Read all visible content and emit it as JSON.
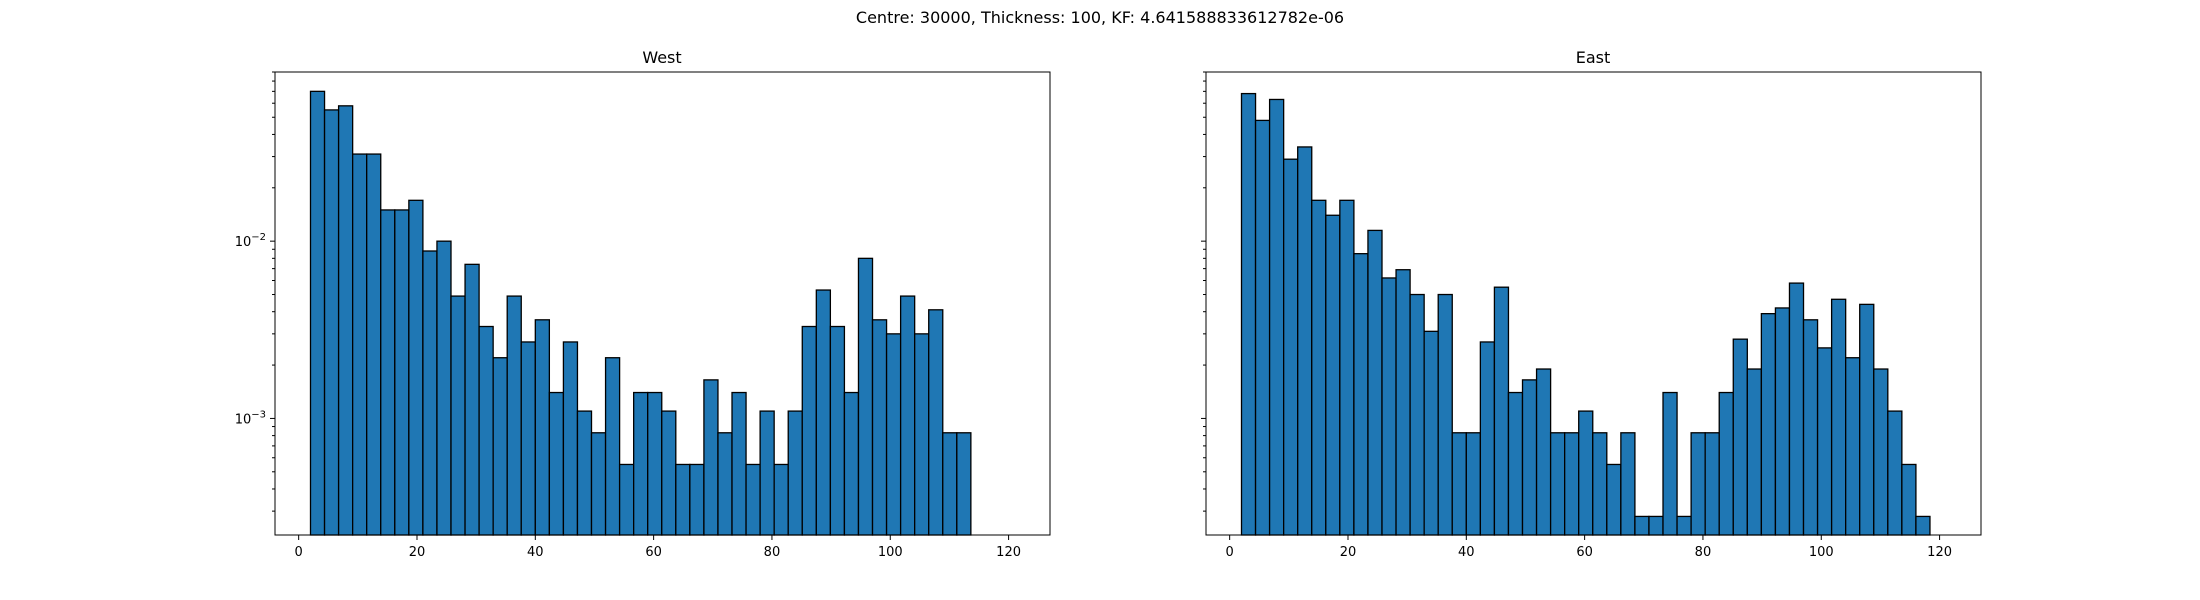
{
  "figure_title": "Centre: 30000, Thickness: 100, KF: 4.641588833612782e-06",
  "colors": {
    "bar_fill": "#1f77b4",
    "bar_edge": "#000000"
  },
  "chart_data": [
    {
      "type": "bar",
      "title": "West",
      "xlabel": "",
      "ylabel": "",
      "xlim": [
        -4,
        127
      ],
      "ylim": [
        0.00022,
        0.09
      ],
      "yscale": "log",
      "grid": false,
      "x_ticks": [
        0,
        20,
        40,
        60,
        80,
        100,
        120
      ],
      "x_tick_labels": [
        "0",
        "20",
        "40",
        "60",
        "80",
        "100",
        "120"
      ],
      "y_ticks": [
        0.01,
        0.001
      ],
      "y_tick_labels": [
        "10^-2",
        "10^-3"
      ],
      "bin_start": 2,
      "bin_width": 2.375,
      "values": [
        0.07,
        0.055,
        0.058,
        0.031,
        0.031,
        0.015,
        0.015,
        0.017,
        0.0088,
        0.01,
        0.0049,
        0.0074,
        0.0033,
        0.0022,
        0.0049,
        0.0027,
        0.0036,
        0.0014,
        0.0027,
        0.0011,
        0.00083,
        0.0022,
        0.00055,
        0.0014,
        0.0014,
        0.0011,
        0.00055,
        0.00055,
        0.00165,
        0.00083,
        0.0014,
        0.00055,
        0.0011,
        0.00055,
        0.0011,
        0.0033,
        0.0053,
        0.0033,
        0.0014,
        0.008,
        0.0036,
        0.003,
        0.0049,
        0.003,
        0.0041,
        0.00083,
        0.00083
      ]
    },
    {
      "type": "bar",
      "title": "East",
      "xlabel": "",
      "ylabel": "",
      "xlim": [
        -4,
        127
      ],
      "ylim": [
        0.00022,
        0.09
      ],
      "yscale": "log",
      "grid": false,
      "x_ticks": [
        0,
        20,
        40,
        60,
        80,
        100,
        120
      ],
      "x_tick_labels": [
        "0",
        "20",
        "40",
        "60",
        "80",
        "100",
        "120"
      ],
      "y_ticks": [
        0.01,
        0.001
      ],
      "y_tick_labels": [
        "",
        ""
      ],
      "bin_start": 2,
      "bin_width": 2.375,
      "values": [
        0.068,
        0.048,
        0.063,
        0.029,
        0.034,
        0.017,
        0.014,
        0.017,
        0.0085,
        0.0115,
        0.0062,
        0.0069,
        0.005,
        0.0031,
        0.005,
        0.00083,
        0.00083,
        0.0027,
        0.0055,
        0.0014,
        0.00165,
        0.0019,
        0.00083,
        0.00083,
        0.0011,
        0.00083,
        0.00055,
        0.00083,
        0.00028,
        0.00028,
        0.0014,
        0.00028,
        0.00083,
        0.00083,
        0.0014,
        0.0028,
        0.0019,
        0.0039,
        0.0042,
        0.0058,
        0.0036,
        0.0025,
        0.0047,
        0.0022,
        0.0044,
        0.0019,
        0.0011,
        0.00055,
        0.00028
      ]
    }
  ]
}
